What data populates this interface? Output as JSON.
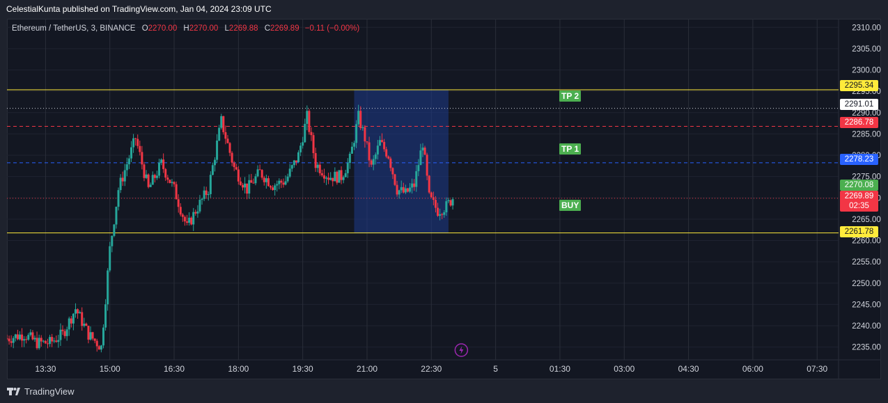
{
  "header": {
    "attribution": "CelestialKunta published on TradingView.com, Jan 04, 2024 23:09 UTC"
  },
  "legend": {
    "symbol": "Ethereum / TetherUS, 3, BINANCE",
    "o_label": "O",
    "o_value": "2270.00",
    "h_label": "H",
    "h_value": "2270.00",
    "l_label": "L",
    "l_value": "2269.88",
    "c_label": "C",
    "c_value": "2269.89",
    "change": "−0.11 (−0.00%)"
  },
  "tags": {
    "tp2": "TP 2",
    "tp1": "TP 1",
    "buy": "BUY"
  },
  "price_labels": {
    "upper_yellow": "2295.34",
    "white_dotted": "2291.01",
    "red_dashed": "2286.78",
    "blue_dashed": "2278.23",
    "green_open": "2270.08",
    "current_price": "2269.89",
    "countdown": "02:35",
    "lower_yellow": "2261.78"
  },
  "footer": {
    "brand": "TradingView"
  },
  "colors": {
    "bg": "#131722",
    "up": "#26a69a",
    "down": "#f23645",
    "yellow": "#ffeb3b",
    "blue": "#2962ff",
    "green": "#4caf50",
    "box": "#1e3a8a"
  },
  "chart_data": {
    "type": "candlestick",
    "symbol": "Ethereum / TetherUS",
    "interval": "3",
    "exchange": "BINANCE",
    "ylim": [
      2232,
      2312
    ],
    "y_ticks": [
      "2310.00",
      "2305.00",
      "2300.00",
      "2295.00",
      "2290.00",
      "2285.00",
      "2280.00",
      "2275.00",
      "2270.00",
      "2265.00",
      "2260.00",
      "2255.00",
      "2250.00",
      "2245.00",
      "2240.00",
      "2235.00"
    ],
    "x_ticks": [
      "13:30",
      "15:00",
      "16:30",
      "18:00",
      "19:30",
      "21:00",
      "22:30",
      "5",
      "01:30",
      "03:00",
      "04:30",
      "06:00",
      "07:30"
    ],
    "x_tick_hours": [
      13.5,
      15,
      16.5,
      18,
      19.5,
      21,
      22.5,
      24,
      25.5,
      27,
      28.5,
      30,
      31.5
    ],
    "xlim_hours": [
      12.6,
      32.0
    ],
    "horizontal_lines": [
      {
        "price": 2295.34,
        "style": "solid",
        "color": "#ffeb3b"
      },
      {
        "price": 2291.01,
        "style": "dotted",
        "color": "#d1d4dc"
      },
      {
        "price": 2286.78,
        "style": "dashed",
        "color": "#f23645"
      },
      {
        "price": 2278.23,
        "style": "dashed",
        "color": "#2962ff"
      },
      {
        "price": 2269.89,
        "style": "dotted",
        "color": "#f23645"
      },
      {
        "price": 2261.78,
        "style": "solid",
        "color": "#ffeb3b"
      }
    ],
    "zone": {
      "x_hours": [
        20.7,
        22.9
      ],
      "price": [
        2261.78,
        2295.34
      ]
    },
    "anchor_closes": [
      [
        12.6,
        2237
      ],
      [
        13.0,
        2238
      ],
      [
        13.3,
        2236
      ],
      [
        13.6,
        2236
      ],
      [
        13.9,
        2238
      ],
      [
        14.2,
        2244
      ],
      [
        14.5,
        2238
      ],
      [
        14.8,
        2235
      ],
      [
        15.0,
        2258
      ],
      [
        15.2,
        2272
      ],
      [
        15.6,
        2284
      ],
      [
        15.9,
        2272
      ],
      [
        16.2,
        2278
      ],
      [
        16.5,
        2272
      ],
      [
        16.8,
        2263
      ],
      [
        17.0,
        2267
      ],
      [
        17.3,
        2272
      ],
      [
        17.6,
        2288
      ],
      [
        17.9,
        2277
      ],
      [
        18.2,
        2272
      ],
      [
        18.5,
        2276
      ],
      [
        18.8,
        2273
      ],
      [
        19.1,
        2274
      ],
      [
        19.4,
        2280
      ],
      [
        19.6,
        2289
      ],
      [
        19.8,
        2278
      ],
      [
        20.1,
        2275
      ],
      [
        20.4,
        2275
      ],
      [
        20.6,
        2279
      ],
      [
        20.8,
        2289
      ],
      [
        20.95,
        2284
      ],
      [
        21.1,
        2277
      ],
      [
        21.3,
        2283
      ],
      [
        21.5,
        2280
      ],
      [
        21.7,
        2272
      ],
      [
        21.9,
        2271
      ],
      [
        22.1,
        2273
      ],
      [
        22.3,
        2283
      ],
      [
        22.45,
        2270
      ],
      [
        22.65,
        2267
      ],
      [
        22.85,
        2268
      ],
      [
        23.0,
        2270
      ]
    ]
  }
}
